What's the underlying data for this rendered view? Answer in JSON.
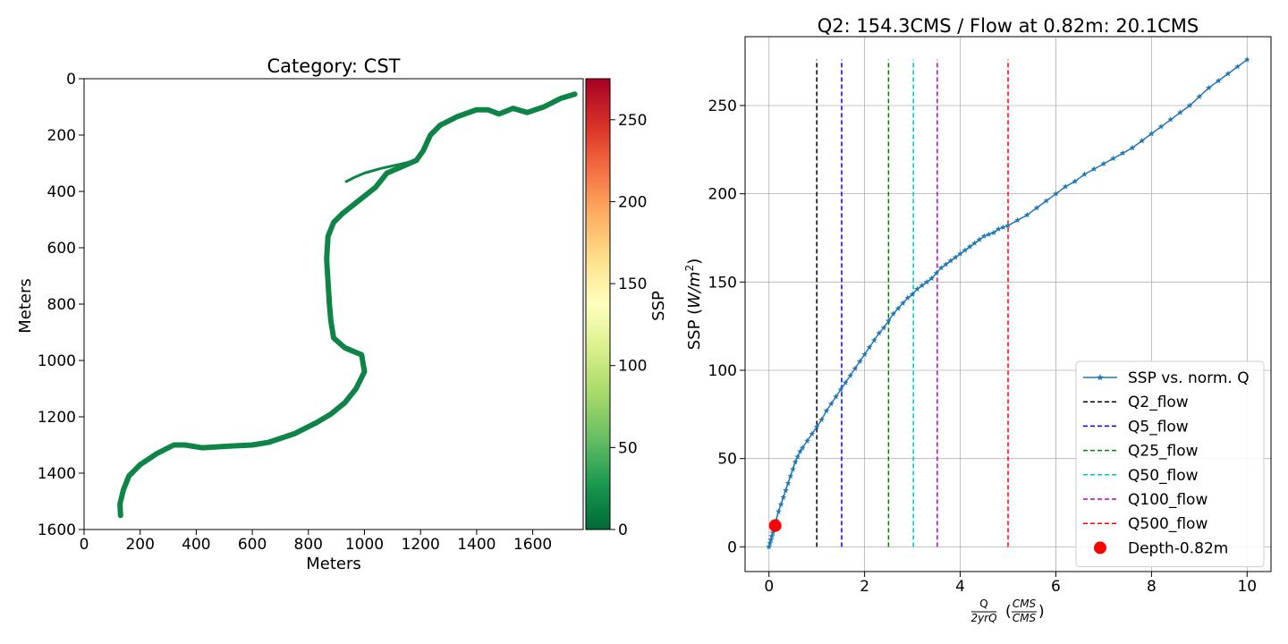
{
  "chart_data": [
    {
      "type": "heatmap",
      "title": "Category: CST",
      "xlabel": "Meters",
      "ylabel": "Meters",
      "xlim": [
        0,
        1780
      ],
      "ylim": [
        1600,
        0
      ],
      "xticks": [
        "0",
        "200",
        "400",
        "600",
        "800",
        "1000",
        "1200",
        "1400",
        "1600"
      ],
      "yticks": [
        "0",
        "200",
        "400",
        "600",
        "800",
        "1000",
        "1200",
        "1400",
        "1600"
      ],
      "colorbar": {
        "label": "SSP",
        "range": [
          0,
          275
        ],
        "colormap": "RdYlGn_r",
        "ticks": [
          "0",
          "50",
          "100",
          "150",
          "200",
          "250"
        ]
      },
      "river_color": "#0f8447",
      "river_centerline": [
        [
          1750,
          55
        ],
        [
          1700,
          70
        ],
        [
          1640,
          100
        ],
        [
          1580,
          120
        ],
        [
          1530,
          105
        ],
        [
          1480,
          125
        ],
        [
          1440,
          110
        ],
        [
          1400,
          110
        ],
        [
          1330,
          135
        ],
        [
          1270,
          165
        ],
        [
          1235,
          200
        ],
        [
          1210,
          255
        ],
        [
          1185,
          290
        ],
        [
          1150,
          305
        ],
        [
          1080,
          335
        ],
        [
          1040,
          385
        ],
        [
          970,
          440
        ],
        [
          920,
          480
        ],
        [
          890,
          510
        ],
        [
          870,
          560
        ],
        [
          865,
          640
        ],
        [
          870,
          720
        ],
        [
          875,
          800
        ],
        [
          880,
          860
        ],
        [
          890,
          920
        ],
        [
          930,
          955
        ],
        [
          990,
          980
        ],
        [
          1000,
          1040
        ],
        [
          970,
          1100
        ],
        [
          930,
          1150
        ],
        [
          880,
          1190
        ],
        [
          830,
          1220
        ],
        [
          750,
          1260
        ],
        [
          660,
          1290
        ],
        [
          600,
          1300
        ],
        [
          500,
          1305
        ],
        [
          420,
          1310
        ],
        [
          360,
          1300
        ],
        [
          320,
          1300
        ],
        [
          260,
          1330
        ],
        [
          200,
          1370
        ],
        [
          160,
          1410
        ],
        [
          140,
          1460
        ],
        [
          128,
          1510
        ],
        [
          130,
          1550
        ]
      ],
      "river_branch": [
        [
          1185,
          290
        ],
        [
          1120,
          305
        ],
        [
          1060,
          318
        ],
        [
          1000,
          335
        ],
        [
          960,
          352
        ],
        [
          935,
          365
        ]
      ]
    },
    {
      "type": "line",
      "title": "Q2: 154.3CMS / Flow at 0.82m: 20.1CMS",
      "xlabel": "Q / 2yrQ (CMS / CMS)",
      "ylabel": "SSP (W/m²)",
      "xlim": [
        -0.5,
        10.5
      ],
      "ylim": [
        -14,
        289
      ],
      "xticks": [
        "0",
        "2",
        "4",
        "6",
        "8",
        "10"
      ],
      "yticks": [
        "0",
        "50",
        "100",
        "150",
        "200",
        "250"
      ],
      "grid": true,
      "legend_position": "lower-right",
      "series": [
        {
          "name": "SSP vs. norm. Q",
          "color": "#1f77b4",
          "marker": "star",
          "x": [
            0,
            0.02,
            0.04,
            0.06,
            0.08,
            0.1,
            0.15,
            0.2,
            0.25,
            0.3,
            0.35,
            0.4,
            0.45,
            0.5,
            0.55,
            0.6,
            0.65,
            0.7,
            0.8,
            0.9,
            1.0,
            1.1,
            1.2,
            1.3,
            1.4,
            1.5,
            1.6,
            1.7,
            1.8,
            1.9,
            2.0,
            2.1,
            2.2,
            2.3,
            2.4,
            2.5,
            2.6,
            2.7,
            2.8,
            2.9,
            3.0,
            3.1,
            3.2,
            3.3,
            3.4,
            3.5,
            3.6,
            3.7,
            3.8,
            3.9,
            4.0,
            4.1,
            4.2,
            4.3,
            4.4,
            4.5,
            4.6,
            4.7,
            4.8,
            4.9,
            5.0,
            5.2,
            5.4,
            5.6,
            5.8,
            6.0,
            6.2,
            6.4,
            6.6,
            6.8,
            7.0,
            7.2,
            7.4,
            7.6,
            7.8,
            8.0,
            8.2,
            8.4,
            8.6,
            8.8,
            9.0,
            9.2,
            9.4,
            9.6,
            9.8,
            10.0
          ],
          "y": [
            0,
            2,
            4,
            6,
            8,
            11,
            15,
            20,
            24,
            28,
            32,
            36,
            40,
            44,
            48,
            51,
            54,
            56,
            60,
            64,
            68,
            72,
            77,
            81,
            85,
            89,
            93,
            97,
            101,
            105,
            109,
            113,
            117,
            121,
            124,
            128,
            132,
            135,
            138,
            141,
            143,
            146,
            148,
            150,
            152,
            155,
            158,
            160,
            162,
            164,
            166,
            168,
            170,
            172,
            174,
            176,
            177,
            178,
            180,
            181,
            182,
            185,
            188,
            192,
            196,
            200,
            204,
            207,
            211,
            214,
            217,
            220,
            223,
            226,
            230,
            234,
            238,
            242,
            246,
            250,
            255,
            260,
            264,
            268,
            272,
            276
          ]
        }
      ],
      "vlines": [
        {
          "name": "Q2_flow",
          "x": 1.0,
          "color": "#000000"
        },
        {
          "name": "Q5_flow",
          "x": 1.52,
          "color": "#0000ff"
        },
        {
          "name": "Q25_flow",
          "x": 2.5,
          "color": "#008000"
        },
        {
          "name": "Q50_flow",
          "x": 3.02,
          "color": "#00bfbf"
        },
        {
          "name": "Q100_flow",
          "x": 3.52,
          "color": "#bf00bf"
        },
        {
          "name": "Q500_flow",
          "x": 5.0,
          "color": "#ff0000"
        }
      ],
      "vline_ymax": 276,
      "point": {
        "name": "Depth-0.82m",
        "x": 0.13,
        "y": 12,
        "color": "#ff0000"
      }
    }
  ]
}
